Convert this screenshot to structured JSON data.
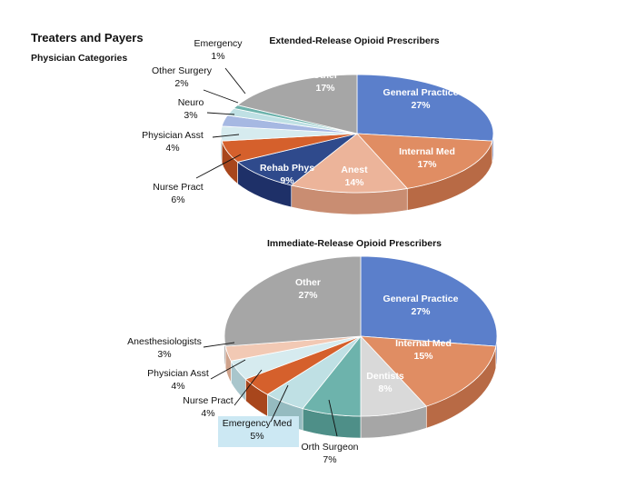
{
  "header": {
    "title": "Treaters and Payers",
    "subtitle": "Physician Categories"
  },
  "chart_data": [
    {
      "type": "pie",
      "title": "Extended-Release Opioid Prescribers",
      "slices": [
        {
          "label": "General Practice",
          "value": 27,
          "value_label": "27%",
          "color": "#5B7FCB",
          "side": "#3E5CA6",
          "label_mode": "inside"
        },
        {
          "label": "Internal Med",
          "value": 17,
          "value_label": "17%",
          "color": "#E08D63",
          "side": "#B86A45",
          "label_mode": "inside"
        },
        {
          "label": "Anest",
          "value": 14,
          "value_label": "14%",
          "color": "#ECB49A",
          "side": "#C98D72",
          "label_mode": "inside"
        },
        {
          "label": "Rehab Phys",
          "value": 9,
          "value_label": "9%",
          "color": "#2F4A8C",
          "side": "#1E3068",
          "label_mode": "inside"
        },
        {
          "label": "Nurse Pract",
          "value": 6,
          "value_label": "6%",
          "color": "#D5602C",
          "side": "#A8461C",
          "label_mode": "outside"
        },
        {
          "label": "Physician Asst",
          "value": 4,
          "value_label": "4%",
          "color": "#D6EBEF",
          "side": "#A9C6CC",
          "label_mode": "outside"
        },
        {
          "label": "Neuro",
          "value": 3,
          "value_label": "3%",
          "color": "#A6B8E2",
          "side": "#8095C4",
          "label_mode": "outside"
        },
        {
          "label": "Other Surgery",
          "value": 2,
          "value_label": "2%",
          "color": "#BFE0E4",
          "side": "#95BBC0",
          "label_mode": "outside"
        },
        {
          "label": "Emergency",
          "value": 1,
          "value_label": "1%",
          "color": "#6DB3AC",
          "side": "#4E8F88",
          "label_mode": "outside"
        },
        {
          "label": "Other",
          "value": 17,
          "value_label": "17%",
          "color": "#A6A6A6",
          "side": "#7F7F7F",
          "label_mode": "inside"
        }
      ]
    },
    {
      "type": "pie",
      "title": "Immediate-Release Opioid Prescribers",
      "slices": [
        {
          "label": "General Practice",
          "value": 27,
          "value_label": "27%",
          "color": "#5B7FCB",
          "side": "#3E5CA6",
          "label_mode": "inside"
        },
        {
          "label": "Internal Med",
          "value": 15,
          "value_label": "15%",
          "color": "#E08D63",
          "side": "#B86A45",
          "label_mode": "inside"
        },
        {
          "label": "Dentists",
          "value": 8,
          "value_label": "8%",
          "color": "#D9D9D9",
          "side": "#A6A6A6",
          "label_mode": "inside"
        },
        {
          "label": "Orth Surgeon",
          "value": 7,
          "value_label": "7%",
          "color": "#6DB3AC",
          "side": "#4E8F88",
          "label_mode": "outside"
        },
        {
          "label": "Emergency Med",
          "value": 5,
          "value_label": "5%",
          "color": "#BFE0E4",
          "side": "#95BBC0",
          "label_mode": "outside",
          "highlight": "#CCE8F3"
        },
        {
          "label": "Nurse Pract",
          "value": 4,
          "value_label": "4%",
          "color": "#D5602C",
          "side": "#A8461C",
          "label_mode": "outside"
        },
        {
          "label": "Physician Asst",
          "value": 4,
          "value_label": "4%",
          "color": "#D6EBEF",
          "side": "#A9C6CC",
          "label_mode": "outside"
        },
        {
          "label": "Anesthesiologists",
          "value": 3,
          "value_label": "3%",
          "color": "#F2C9B4",
          "side": "#CFA38C",
          "label_mode": "outside"
        },
        {
          "label": "Other",
          "value": 27,
          "value_label": "27%",
          "color": "#A6A6A6",
          "side": "#7F7F7F",
          "label_mode": "inside"
        }
      ]
    }
  ]
}
